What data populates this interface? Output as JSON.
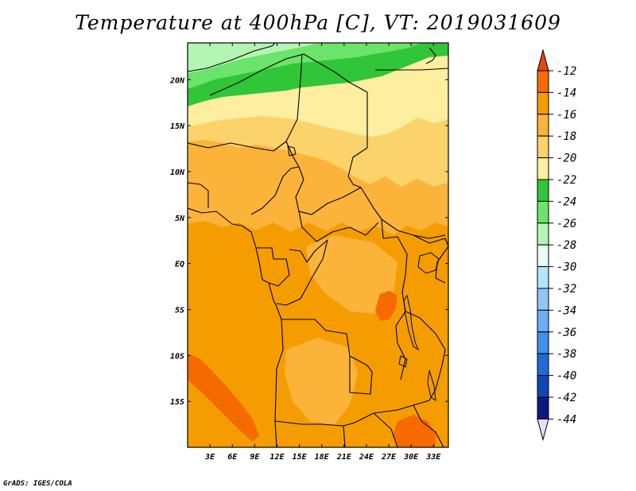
{
  "title": "Temperature at 400hPa [C], VT: 2019031609",
  "credit": "GrADS: IGES/COLA",
  "map": {
    "lon_range": [
      0,
      35
    ],
    "lat_range": [
      -20,
      24
    ],
    "x_ticks": [
      "3E",
      "6E",
      "9E",
      "12E",
      "15E",
      "18E",
      "21E",
      "24E",
      "27E",
      "30E",
      "33E"
    ],
    "x_tick_values": [
      3,
      6,
      9,
      12,
      15,
      18,
      21,
      24,
      27,
      30,
      33
    ],
    "y_ticks": [
      "20N",
      "15N",
      "10N",
      "5N",
      "EQ",
      "5S",
      "10S",
      "15S"
    ],
    "y_tick_values": [
      20,
      15,
      10,
      5,
      0,
      -5,
      -10,
      -15
    ]
  },
  "colorbar": {
    "labels": [
      "-12",
      "-14",
      "-16",
      "-18",
      "-20",
      "-22",
      "-24",
      "-26",
      "-28",
      "-30",
      "-32",
      "-34",
      "-36",
      "-38",
      "-40",
      "-42",
      "-44"
    ],
    "colors": [
      "#e8470c",
      "#f56b00",
      "#f59d00",
      "#fbb33a",
      "#fbd36a",
      "#fdeea0",
      "#31c637",
      "#6ae46a",
      "#b4f5b4",
      "#e4fbf7",
      "#b4e4fa",
      "#8ec6f5",
      "#6aaff5",
      "#4190e9",
      "#1f6bd9",
      "#1147b4",
      "#0c1a80",
      "#e2e2f8"
    ]
  },
  "legend_contours": {
    "colors": {
      "c12": "#e8470c",
      "c14": "#f56b00",
      "c16": "#f59d00",
      "c18": "#fbb33a",
      "c20": "#fbd36a",
      "c22": "#fdeea0",
      "c24": "#31c637",
      "c26": "#6ae46a",
      "c28": "#b4f5b4"
    }
  }
}
